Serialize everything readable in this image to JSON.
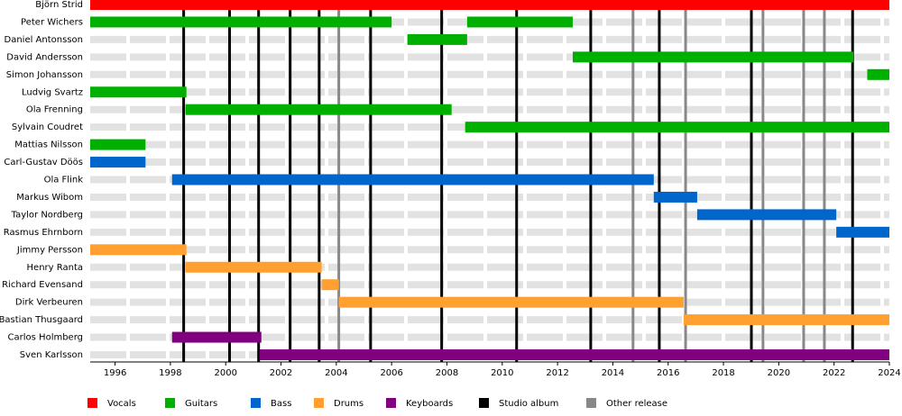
{
  "chart_data": {
    "type": "timeline",
    "categories": [
      "Björn Strid",
      "Peter Wichers",
      "Daniel Antonsson",
      "David Andersson",
      "Simon Johansson",
      "Ludvig Svartz",
      "Ola Frenning",
      "Sylvain Coudret",
      "Mattias Nilsson",
      "Carl-Gustav Döös",
      "Ola Flink",
      "Markus Wibom",
      "Taylor Nordberg",
      "Rasmus Ehrnborn",
      "Jimmy Persson",
      "Henry Ranta",
      "Richard Evensand",
      "Dirk Verbeuren",
      "Bastian Thusgaard",
      "Carlos Holmberg",
      "Sven Karlsson"
    ],
    "series": [
      {
        "name": "Vocals",
        "color": "#ff0000",
        "values": [
          [
            [
              1995.1,
              2024
            ]
          ],
          null,
          null,
          null,
          null,
          null,
          null,
          null,
          null,
          null,
          null,
          null,
          null,
          null,
          null,
          null,
          null,
          null,
          null,
          null,
          null
        ]
      },
      {
        "name": "Guitars",
        "color": "#00b000",
        "values": [
          null,
          [
            [
              1995.1,
              2006.0
            ],
            [
              2008.73,
              2012.55
            ]
          ],
          [
            [
              2006.57,
              2008.73
            ]
          ],
          [
            [
              2012.55,
              2022.7
            ]
          ],
          [
            [
              2023.2,
              2024
            ]
          ],
          [
            [
              1995.1,
              1998.58
            ]
          ],
          [
            [
              1998.55,
              2008.17
            ]
          ],
          [
            [
              2008.66,
              2024
            ]
          ],
          [
            [
              1995.1,
              1997.1
            ]
          ],
          null,
          null,
          null,
          null,
          null,
          null,
          null,
          null,
          null,
          null,
          null,
          null
        ]
      },
      {
        "name": "Bass",
        "color": "#0066cc",
        "values": [
          null,
          null,
          null,
          null,
          null,
          null,
          null,
          null,
          null,
          [
            [
              1995.1,
              1997.1
            ]
          ],
          [
            [
              1998.06,
              2015.48
            ]
          ],
          [
            [
              2015.48,
              2017.05
            ]
          ],
          [
            [
              2017.05,
              2022.08
            ]
          ],
          [
            [
              2022.08,
              2024
            ]
          ],
          null,
          null,
          null,
          null,
          null,
          null,
          null
        ]
      },
      {
        "name": "Drums",
        "color": "#ffa030",
        "values": [
          null,
          null,
          null,
          null,
          null,
          null,
          null,
          null,
          null,
          null,
          null,
          null,
          null,
          null,
          [
            [
              1995.1,
              1998.58
            ]
          ],
          [
            [
              1998.55,
              2003.47
            ]
          ],
          [
            [
              2003.47,
              2004.09
            ]
          ],
          [
            [
              2004.09,
              2016.56
            ]
          ],
          [
            [
              2016.56,
              2024
            ]
          ],
          null,
          null
        ]
      },
      {
        "name": "Keyboards",
        "color": "#800080",
        "values": [
          null,
          null,
          null,
          null,
          null,
          null,
          null,
          null,
          null,
          null,
          null,
          null,
          null,
          null,
          null,
          null,
          null,
          null,
          null,
          [
            [
              1998.06,
              2001.29
            ]
          ],
          [
            [
              2001.22,
              2024
            ]
          ]
        ]
      }
    ],
    "markers": [
      {
        "name": "Studio album",
        "color": "#000000",
        "values": [
          1998.48,
          2000.14,
          2001.19,
          2002.33,
          2003.38,
          2005.24,
          2007.81,
          2010.52,
          2013.2,
          2015.68,
          2019.01,
          2022.67
        ]
      },
      {
        "name": "Other release",
        "color": "#888888",
        "values": [
          2004.09,
          2014.73,
          2016.63,
          2019.43,
          2020.9,
          2021.65
        ]
      }
    ],
    "xlim": [
      1995.1,
      2024
    ],
    "xticks": [
      1996,
      1998,
      2000,
      2002,
      2004,
      2006,
      2008,
      2010,
      2012,
      2014,
      2016,
      2018,
      2020,
      2022,
      2024
    ]
  }
}
